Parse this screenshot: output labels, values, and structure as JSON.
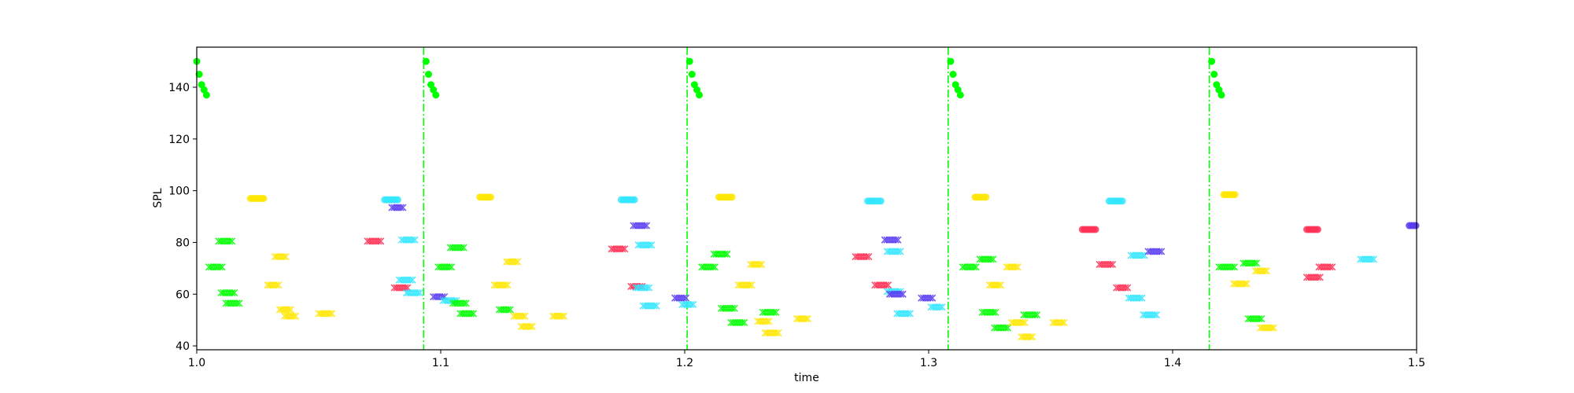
{
  "chart_data": {
    "type": "scatter",
    "title": "",
    "xlabel": "time",
    "ylabel": "SPL",
    "xlim": [
      1.0,
      1.5
    ],
    "ylim": [
      38.5,
      155.5
    ],
    "x_ticks": [
      1.0,
      1.1,
      1.2,
      1.3,
      1.4,
      1.5
    ],
    "x_tick_labels": [
      "1.0",
      "1.1",
      "1.2",
      "1.3",
      "1.4",
      "1.5"
    ],
    "y_ticks": [
      40,
      60,
      80,
      100,
      120,
      140
    ],
    "y_tick_labels": [
      "40",
      "60",
      "80",
      "100",
      "120",
      "140"
    ],
    "grid": false,
    "colors": {
      "green": "#00ff00",
      "yellow": "#ffe600",
      "cyan": "#33e6ff",
      "red": "#ff2f55",
      "purple": "#5a3cf0"
    },
    "vlines": {
      "x": [
        1.093,
        1.201,
        1.308,
        1.415
      ],
      "color": "#00ff00",
      "style": "dashdot"
    },
    "onset_points": [
      {
        "x": 1.0,
        "y": 150
      },
      {
        "x": 1.001,
        "y": 145
      },
      {
        "x": 1.002,
        "y": 141
      },
      {
        "x": 1.003,
        "y": 139
      },
      {
        "x": 1.004,
        "y": 137
      },
      {
        "x": 1.094,
        "y": 150
      },
      {
        "x": 1.095,
        "y": 145
      },
      {
        "x": 1.096,
        "y": 141
      },
      {
        "x": 1.097,
        "y": 139
      },
      {
        "x": 1.098,
        "y": 137
      },
      {
        "x": 1.202,
        "y": 150
      },
      {
        "x": 1.203,
        "y": 145
      },
      {
        "x": 1.204,
        "y": 141
      },
      {
        "x": 1.205,
        "y": 139
      },
      {
        "x": 1.206,
        "y": 137
      },
      {
        "x": 1.309,
        "y": 150
      },
      {
        "x": 1.31,
        "y": 145
      },
      {
        "x": 1.311,
        "y": 141
      },
      {
        "x": 1.312,
        "y": 139
      },
      {
        "x": 1.313,
        "y": 137
      },
      {
        "x": 1.416,
        "y": 150
      },
      {
        "x": 1.417,
        "y": 145
      },
      {
        "x": 1.418,
        "y": 141
      },
      {
        "x": 1.419,
        "y": 139
      },
      {
        "x": 1.42,
        "y": 137
      }
    ],
    "notes": [
      {
        "x0": 1.005,
        "x1": 1.011,
        "y": 70.5,
        "color": "green",
        "marker": "x"
      },
      {
        "x0": 1.009,
        "x1": 1.015,
        "y": 80.5,
        "color": "green",
        "marker": "x"
      },
      {
        "x0": 1.01,
        "x1": 1.016,
        "y": 60.5,
        "color": "green",
        "marker": "x"
      },
      {
        "x0": 1.012,
        "x1": 1.018,
        "y": 56.5,
        "color": "green",
        "marker": "x"
      },
      {
        "x0": 1.022,
        "x1": 1.028,
        "y": 97,
        "color": "yellow",
        "marker": "o"
      },
      {
        "x0": 1.029,
        "x1": 1.034,
        "y": 63.5,
        "color": "yellow",
        "marker": "x"
      },
      {
        "x0": 1.032,
        "x1": 1.037,
        "y": 74.5,
        "color": "yellow",
        "marker": "x"
      },
      {
        "x0": 1.034,
        "x1": 1.039,
        "y": 54,
        "color": "yellow",
        "marker": "x"
      },
      {
        "x0": 1.036,
        "x1": 1.041,
        "y": 51.5,
        "color": "yellow",
        "marker": "x"
      },
      {
        "x0": 1.05,
        "x1": 1.056,
        "y": 52.5,
        "color": "yellow",
        "marker": "x"
      },
      {
        "x0": 1.07,
        "x1": 1.076,
        "y": 80.5,
        "color": "red",
        "marker": "x"
      },
      {
        "x0": 1.077,
        "x1": 1.083,
        "y": 96.5,
        "color": "cyan",
        "marker": "o"
      },
      {
        "x0": 1.08,
        "x1": 1.085,
        "y": 93.5,
        "color": "purple",
        "marker": "x"
      },
      {
        "x0": 1.081,
        "x1": 1.087,
        "y": 62.5,
        "color": "red",
        "marker": "x"
      },
      {
        "x0": 1.083,
        "x1": 1.089,
        "y": 65.5,
        "color": "cyan",
        "marker": "x"
      },
      {
        "x0": 1.084,
        "x1": 1.09,
        "y": 81,
        "color": "cyan",
        "marker": "x"
      },
      {
        "x0": 1.086,
        "x1": 1.092,
        "y": 60.5,
        "color": "cyan",
        "marker": "x"
      },
      {
        "x0": 1.097,
        "x1": 1.102,
        "y": 59,
        "color": "purple",
        "marker": "x"
      },
      {
        "x0": 1.099,
        "x1": 1.105,
        "y": 70.5,
        "color": "green",
        "marker": "x"
      },
      {
        "x0": 1.101,
        "x1": 1.107,
        "y": 57.5,
        "color": "cyan",
        "marker": "x"
      },
      {
        "x0": 1.104,
        "x1": 1.11,
        "y": 78,
        "color": "green",
        "marker": "x"
      },
      {
        "x0": 1.105,
        "x1": 1.111,
        "y": 56.5,
        "color": "green",
        "marker": "x"
      },
      {
        "x0": 1.108,
        "x1": 1.114,
        "y": 52.5,
        "color": "green",
        "marker": "x"
      },
      {
        "x0": 1.116,
        "x1": 1.121,
        "y": 97.5,
        "color": "yellow",
        "marker": "o"
      },
      {
        "x0": 1.122,
        "x1": 1.128,
        "y": 63.5,
        "color": "yellow",
        "marker": "x"
      },
      {
        "x0": 1.124,
        "x1": 1.129,
        "y": 54,
        "color": "green",
        "marker": "x"
      },
      {
        "x0": 1.127,
        "x1": 1.132,
        "y": 72.5,
        "color": "yellow",
        "marker": "x"
      },
      {
        "x0": 1.13,
        "x1": 1.135,
        "y": 51.5,
        "color": "yellow",
        "marker": "x"
      },
      {
        "x0": 1.133,
        "x1": 1.138,
        "y": 47.5,
        "color": "yellow",
        "marker": "x"
      },
      {
        "x0": 1.146,
        "x1": 1.151,
        "y": 51.5,
        "color": "yellow",
        "marker": "x"
      },
      {
        "x0": 1.17,
        "x1": 1.176,
        "y": 77.5,
        "color": "red",
        "marker": "x"
      },
      {
        "x0": 1.174,
        "x1": 1.18,
        "y": 96.5,
        "color": "cyan",
        "marker": "o"
      },
      {
        "x0": 1.178,
        "x1": 1.183,
        "y": 63,
        "color": "red",
        "marker": "x"
      },
      {
        "x0": 1.179,
        "x1": 1.185,
        "y": 86.5,
        "color": "purple",
        "marker": "x"
      },
      {
        "x0": 1.18,
        "x1": 1.186,
        "y": 62.5,
        "color": "cyan",
        "marker": "x"
      },
      {
        "x0": 1.181,
        "x1": 1.187,
        "y": 79,
        "color": "cyan",
        "marker": "x"
      },
      {
        "x0": 1.183,
        "x1": 1.189,
        "y": 55.5,
        "color": "cyan",
        "marker": "x"
      },
      {
        "x0": 1.196,
        "x1": 1.201,
        "y": 58.5,
        "color": "purple",
        "marker": "x"
      },
      {
        "x0": 1.199,
        "x1": 1.204,
        "y": 56,
        "color": "cyan",
        "marker": "x"
      },
      {
        "x0": 1.207,
        "x1": 1.213,
        "y": 70.5,
        "color": "green",
        "marker": "x"
      },
      {
        "x0": 1.212,
        "x1": 1.218,
        "y": 75.5,
        "color": "green",
        "marker": "x"
      },
      {
        "x0": 1.214,
        "x1": 1.22,
        "y": 97.5,
        "color": "yellow",
        "marker": "o"
      },
      {
        "x0": 1.215,
        "x1": 1.221,
        "y": 54.5,
        "color": "green",
        "marker": "x"
      },
      {
        "x0": 1.219,
        "x1": 1.225,
        "y": 49,
        "color": "green",
        "marker": "x"
      },
      {
        "x0": 1.222,
        "x1": 1.228,
        "y": 63.5,
        "color": "yellow",
        "marker": "x"
      },
      {
        "x0": 1.227,
        "x1": 1.232,
        "y": 71.5,
        "color": "yellow",
        "marker": "x"
      },
      {
        "x0": 1.23,
        "x1": 1.235,
        "y": 49.5,
        "color": "yellow",
        "marker": "x"
      },
      {
        "x0": 1.232,
        "x1": 1.238,
        "y": 53,
        "color": "green",
        "marker": "x"
      },
      {
        "x0": 1.233,
        "x1": 1.239,
        "y": 45,
        "color": "yellow",
        "marker": "x"
      },
      {
        "x0": 1.246,
        "x1": 1.251,
        "y": 50.5,
        "color": "yellow",
        "marker": "x"
      },
      {
        "x0": 1.27,
        "x1": 1.276,
        "y": 74.5,
        "color": "red",
        "marker": "x"
      },
      {
        "x0": 1.275,
        "x1": 1.281,
        "y": 96,
        "color": "cyan",
        "marker": "o"
      },
      {
        "x0": 1.278,
        "x1": 1.284,
        "y": 63.5,
        "color": "red",
        "marker": "x"
      },
      {
        "x0": 1.282,
        "x1": 1.288,
        "y": 81,
        "color": "purple",
        "marker": "x"
      },
      {
        "x0": 1.283,
        "x1": 1.289,
        "y": 76.5,
        "color": "cyan",
        "marker": "x"
      },
      {
        "x0": 1.283,
        "x1": 1.289,
        "y": 61,
        "color": "cyan",
        "marker": "x"
      },
      {
        "x0": 1.284,
        "x1": 1.29,
        "y": 60,
        "color": "purple",
        "marker": "x"
      },
      {
        "x0": 1.287,
        "x1": 1.293,
        "y": 52.5,
        "color": "cyan",
        "marker": "x"
      },
      {
        "x0": 1.297,
        "x1": 1.302,
        "y": 58.5,
        "color": "purple",
        "marker": "x"
      },
      {
        "x0": 1.301,
        "x1": 1.306,
        "y": 55,
        "color": "cyan",
        "marker": "x"
      },
      {
        "x0": 1.314,
        "x1": 1.32,
        "y": 70.5,
        "color": "green",
        "marker": "x"
      },
      {
        "x0": 1.319,
        "x1": 1.324,
        "y": 97.5,
        "color": "yellow",
        "marker": "o"
      },
      {
        "x0": 1.321,
        "x1": 1.327,
        "y": 73.5,
        "color": "green",
        "marker": "x"
      },
      {
        "x0": 1.322,
        "x1": 1.328,
        "y": 53,
        "color": "green",
        "marker": "x"
      },
      {
        "x0": 1.325,
        "x1": 1.33,
        "y": 63.5,
        "color": "yellow",
        "marker": "x"
      },
      {
        "x0": 1.327,
        "x1": 1.333,
        "y": 47,
        "color": "green",
        "marker": "x"
      },
      {
        "x0": 1.332,
        "x1": 1.337,
        "y": 70.5,
        "color": "yellow",
        "marker": "x"
      },
      {
        "x0": 1.334,
        "x1": 1.34,
        "y": 49,
        "color": "yellow",
        "marker": "x"
      },
      {
        "x0": 1.339,
        "x1": 1.345,
        "y": 52,
        "color": "green",
        "marker": "x"
      },
      {
        "x0": 1.338,
        "x1": 1.343,
        "y": 43.5,
        "color": "yellow",
        "marker": "x"
      },
      {
        "x0": 1.351,
        "x1": 1.356,
        "y": 49,
        "color": "yellow",
        "marker": "x"
      },
      {
        "x0": 1.363,
        "x1": 1.369,
        "y": 85,
        "color": "red",
        "marker": "o"
      },
      {
        "x0": 1.37,
        "x1": 1.376,
        "y": 71.5,
        "color": "red",
        "marker": "x"
      },
      {
        "x0": 1.374,
        "x1": 1.38,
        "y": 96,
        "color": "cyan",
        "marker": "o"
      },
      {
        "x0": 1.377,
        "x1": 1.382,
        "y": 62.5,
        "color": "red",
        "marker": "x"
      },
      {
        "x0": 1.383,
        "x1": 1.389,
        "y": 75,
        "color": "cyan",
        "marker": "x"
      },
      {
        "x0": 1.382,
        "x1": 1.388,
        "y": 58.5,
        "color": "cyan",
        "marker": "x"
      },
      {
        "x0": 1.388,
        "x1": 1.394,
        "y": 52,
        "color": "cyan",
        "marker": "x"
      },
      {
        "x0": 1.39,
        "x1": 1.396,
        "y": 76.5,
        "color": "purple",
        "marker": "x"
      },
      {
        "x0": 1.419,
        "x1": 1.426,
        "y": 70.5,
        "color": "green",
        "marker": "x"
      },
      {
        "x0": 1.421,
        "x1": 1.426,
        "y": 98.5,
        "color": "yellow",
        "marker": "o"
      },
      {
        "x0": 1.425,
        "x1": 1.431,
        "y": 64,
        "color": "yellow",
        "marker": "x"
      },
      {
        "x0": 1.429,
        "x1": 1.435,
        "y": 72,
        "color": "green",
        "marker": "x"
      },
      {
        "x0": 1.431,
        "x1": 1.437,
        "y": 50.5,
        "color": "green",
        "marker": "x"
      },
      {
        "x0": 1.434,
        "x1": 1.439,
        "y": 69,
        "color": "yellow",
        "marker": "x"
      },
      {
        "x0": 1.436,
        "x1": 1.442,
        "y": 47,
        "color": "yellow",
        "marker": "x"
      },
      {
        "x0": 1.455,
        "x1": 1.46,
        "y": 85,
        "color": "red",
        "marker": "o"
      },
      {
        "x0": 1.455,
        "x1": 1.461,
        "y": 66.5,
        "color": "red",
        "marker": "x"
      },
      {
        "x0": 1.46,
        "x1": 1.466,
        "y": 70.5,
        "color": "red",
        "marker": "x"
      },
      {
        "x0": 1.477,
        "x1": 1.483,
        "y": 73.5,
        "color": "cyan",
        "marker": "x"
      },
      {
        "x0": 1.497,
        "x1": 1.5,
        "y": 86.5,
        "color": "purple",
        "marker": "o"
      }
    ]
  }
}
